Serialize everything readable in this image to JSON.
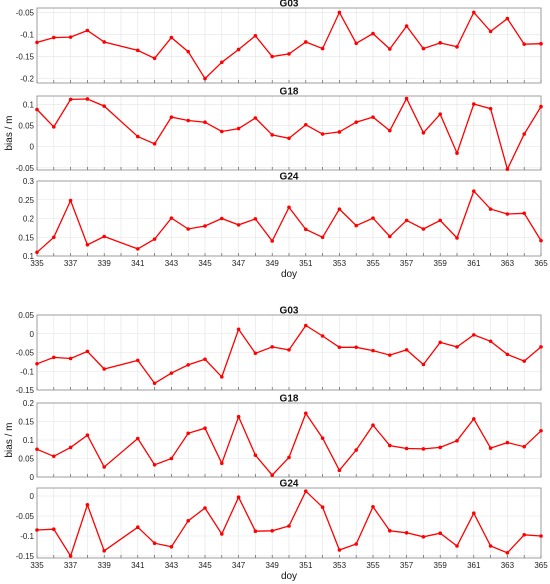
{
  "chart_data": [
    {
      "type": "line",
      "group": "upper",
      "title": "G03",
      "ylabel": "",
      "xlabel": "",
      "x": [
        335,
        336,
        337,
        338,
        339,
        341,
        342,
        343,
        344,
        345,
        346,
        347,
        348,
        349,
        350,
        351,
        352,
        353,
        354,
        355,
        356,
        357,
        358,
        359,
        360,
        361,
        362,
        363,
        364,
        365
      ],
      "values": [
        -0.118,
        -0.107,
        -0.106,
        -0.091,
        -0.117,
        -0.136,
        -0.154,
        -0.107,
        -0.139,
        -0.2,
        -0.163,
        -0.134,
        -0.103,
        -0.15,
        -0.144,
        -0.117,
        -0.132,
        -0.05,
        -0.12,
        -0.098,
        -0.133,
        -0.081,
        -0.132,
        -0.119,
        -0.128,
        -0.05,
        -0.093,
        -0.064,
        -0.122,
        -0.121
      ],
      "ylim": [
        -0.21,
        -0.04
      ],
      "yticks": [
        -0.2,
        -0.15,
        -0.1,
        -0.05
      ],
      "ytick_labels": [
        "-0.2",
        "-0.15",
        "-0.1",
        "-0.05"
      ],
      "grid": true,
      "color": "#ff0000"
    },
    {
      "type": "line",
      "group": "upper",
      "title": "G18",
      "ylabel": "bias / m",
      "xlabel": "",
      "x": [
        335,
        336,
        337,
        338,
        339,
        341,
        342,
        343,
        344,
        345,
        346,
        347,
        348,
        349,
        350,
        351,
        352,
        353,
        354,
        355,
        356,
        357,
        358,
        359,
        360,
        361,
        362,
        363,
        364,
        365
      ],
      "values": [
        0.088,
        0.047,
        0.112,
        0.113,
        0.096,
        0.024,
        0.007,
        0.07,
        0.062,
        0.058,
        0.036,
        0.043,
        0.068,
        0.028,
        0.02,
        0.052,
        0.03,
        0.035,
        0.058,
        0.07,
        0.038,
        0.114,
        0.033,
        0.077,
        -0.015,
        0.101,
        0.09,
        -0.053,
        0.03,
        0.095
      ],
      "ylim": [
        -0.055,
        0.12
      ],
      "yticks": [
        -0.05,
        0,
        0.05,
        0.1
      ],
      "ytick_labels": [
        "-0.05",
        "0",
        "0.05",
        "0.1"
      ],
      "grid": true,
      "color": "#ff0000"
    },
    {
      "type": "line",
      "group": "upper",
      "title": "G24",
      "ylabel": "",
      "xlabel": "doy",
      "x": [
        335,
        336,
        337,
        338,
        339,
        341,
        342,
        343,
        344,
        345,
        346,
        347,
        348,
        349,
        350,
        351,
        352,
        353,
        354,
        355,
        356,
        357,
        358,
        359,
        360,
        361,
        362,
        363,
        364,
        365
      ],
      "values": [
        0.11,
        0.15,
        0.248,
        0.13,
        0.152,
        0.119,
        0.145,
        0.201,
        0.172,
        0.18,
        0.2,
        0.183,
        0.199,
        0.14,
        0.23,
        0.171,
        0.15,
        0.225,
        0.181,
        0.201,
        0.152,
        0.195,
        0.172,
        0.195,
        0.148,
        0.273,
        0.225,
        0.212,
        0.214,
        0.141
      ],
      "ylim": [
        0.1,
        0.3
      ],
      "yticks": [
        0.1,
        0.15,
        0.2,
        0.25,
        0.3
      ],
      "ytick_labels": [
        "0.1",
        "0.15",
        "0.2",
        "0.25",
        "0.3"
      ],
      "grid": true,
      "color": "#ff0000",
      "xticks": [
        335,
        337,
        339,
        341,
        343,
        345,
        347,
        349,
        351,
        353,
        355,
        357,
        359,
        361,
        363,
        365
      ]
    },
    {
      "type": "line",
      "group": "lower",
      "title": "G03",
      "ylabel": "",
      "xlabel": "",
      "x": [
        335,
        336,
        337,
        338,
        339,
        341,
        342,
        343,
        344,
        345,
        346,
        347,
        348,
        349,
        350,
        351,
        352,
        353,
        354,
        355,
        356,
        357,
        358,
        359,
        360,
        361,
        362,
        363,
        364,
        365
      ],
      "values": [
        -0.08,
        -0.063,
        -0.066,
        -0.047,
        -0.094,
        -0.071,
        -0.132,
        -0.105,
        -0.083,
        -0.068,
        -0.115,
        0.012,
        -0.052,
        -0.035,
        -0.043,
        0.022,
        -0.006,
        -0.036,
        -0.036,
        -0.045,
        -0.057,
        -0.043,
        -0.082,
        -0.023,
        -0.035,
        -0.003,
        -0.02,
        -0.055,
        -0.073,
        -0.035
      ],
      "ylim": [
        -0.15,
        0.05
      ],
      "yticks": [
        -0.15,
        -0.1,
        -0.05,
        0,
        0.05
      ],
      "ytick_labels": [
        "-0.15",
        "-0.1",
        "-0.05",
        "0",
        "0.05"
      ],
      "grid": true,
      "color": "#ff0000"
    },
    {
      "type": "line",
      "group": "lower",
      "title": "G18",
      "ylabel": "bias / m",
      "xlabel": "",
      "x": [
        335,
        336,
        337,
        338,
        339,
        341,
        342,
        343,
        344,
        345,
        346,
        347,
        348,
        349,
        350,
        351,
        352,
        353,
        354,
        355,
        356,
        357,
        358,
        359,
        360,
        361,
        362,
        363,
        364,
        365
      ],
      "values": [
        0.075,
        0.056,
        0.08,
        0.113,
        0.027,
        0.104,
        0.033,
        0.05,
        0.118,
        0.132,
        0.037,
        0.163,
        0.059,
        0.005,
        0.053,
        0.172,
        0.105,
        0.018,
        0.073,
        0.14,
        0.085,
        0.077,
        0.076,
        0.08,
        0.098,
        0.157,
        0.078,
        0.093,
        0.082,
        0.125
      ],
      "ylim": [
        0,
        0.2
      ],
      "yticks": [
        0,
        0.05,
        0.1,
        0.15,
        0.2
      ],
      "ytick_labels": [
        "0",
        "0.05",
        "0.1",
        "0.15",
        "0.2"
      ],
      "grid": true,
      "color": "#ff0000"
    },
    {
      "type": "line",
      "group": "lower",
      "title": "G24",
      "ylabel": "",
      "xlabel": "doy",
      "x": [
        335,
        336,
        337,
        338,
        339,
        341,
        342,
        343,
        344,
        345,
        346,
        347,
        348,
        349,
        350,
        351,
        352,
        353,
        354,
        355,
        356,
        357,
        358,
        359,
        360,
        361,
        362,
        363,
        364,
        365
      ],
      "values": [
        -0.085,
        -0.083,
        -0.15,
        -0.022,
        -0.137,
        -0.078,
        -0.118,
        -0.127,
        -0.062,
        -0.03,
        -0.095,
        -0.003,
        -0.088,
        -0.087,
        -0.075,
        0.012,
        -0.028,
        -0.135,
        -0.12,
        -0.027,
        -0.087,
        -0.092,
        -0.102,
        -0.093,
        -0.125,
        -0.043,
        -0.125,
        -0.142,
        -0.097,
        -0.1
      ],
      "ylim": [
        -0.155,
        0.02
      ],
      "yticks": [
        -0.15,
        -0.1,
        -0.05,
        0
      ],
      "ytick_labels": [
        "-0.15",
        "-0.1",
        "-0.05",
        "0"
      ],
      "grid": true,
      "color": "#ff0000",
      "xticks": [
        335,
        337,
        339,
        341,
        343,
        345,
        347,
        349,
        351,
        353,
        355,
        357,
        359,
        361,
        363,
        365
      ]
    }
  ]
}
